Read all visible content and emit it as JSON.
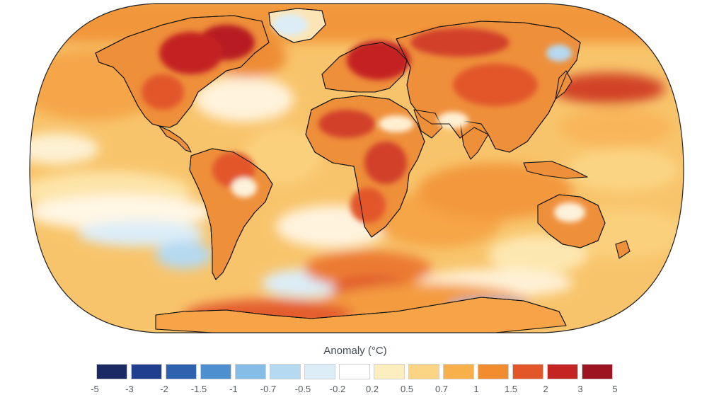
{
  "legend": {
    "title": "Anomaly (°C)",
    "bins": [
      {
        "label": "-5",
        "color": "#1b2a63"
      },
      {
        "label": "-3",
        "color": "#213f8f"
      },
      {
        "label": "-2",
        "color": "#2e62ae"
      },
      {
        "label": "-1.5",
        "color": "#4e90cf"
      },
      {
        "label": "-1",
        "color": "#86bde6"
      },
      {
        "label": "-0.7",
        "color": "#b5d9f1"
      },
      {
        "label": "-0.5",
        "color": "#dcedf8"
      },
      {
        "label": "-0.2",
        "color": "#ffffff"
      },
      {
        "label": "0.2",
        "color": "#fdeec0"
      },
      {
        "label": "0.5",
        "color": "#fbd583"
      },
      {
        "label": "0.7",
        "color": "#f8b04b"
      },
      {
        "label": "1",
        "color": "#f18d2e"
      },
      {
        "label": "1.5",
        "color": "#e2562a"
      },
      {
        "label": "2",
        "color": "#c42422"
      },
      {
        "label": "3",
        "color": "#9d1520"
      }
    ],
    "last_tick": "5"
  },
  "colors": {
    "ocean_base": "#f8c46b",
    "land_base": "#ee8f3a",
    "coast": "#111111",
    "warm_hot": "#c42422",
    "cool": "#b5d9f1"
  }
}
